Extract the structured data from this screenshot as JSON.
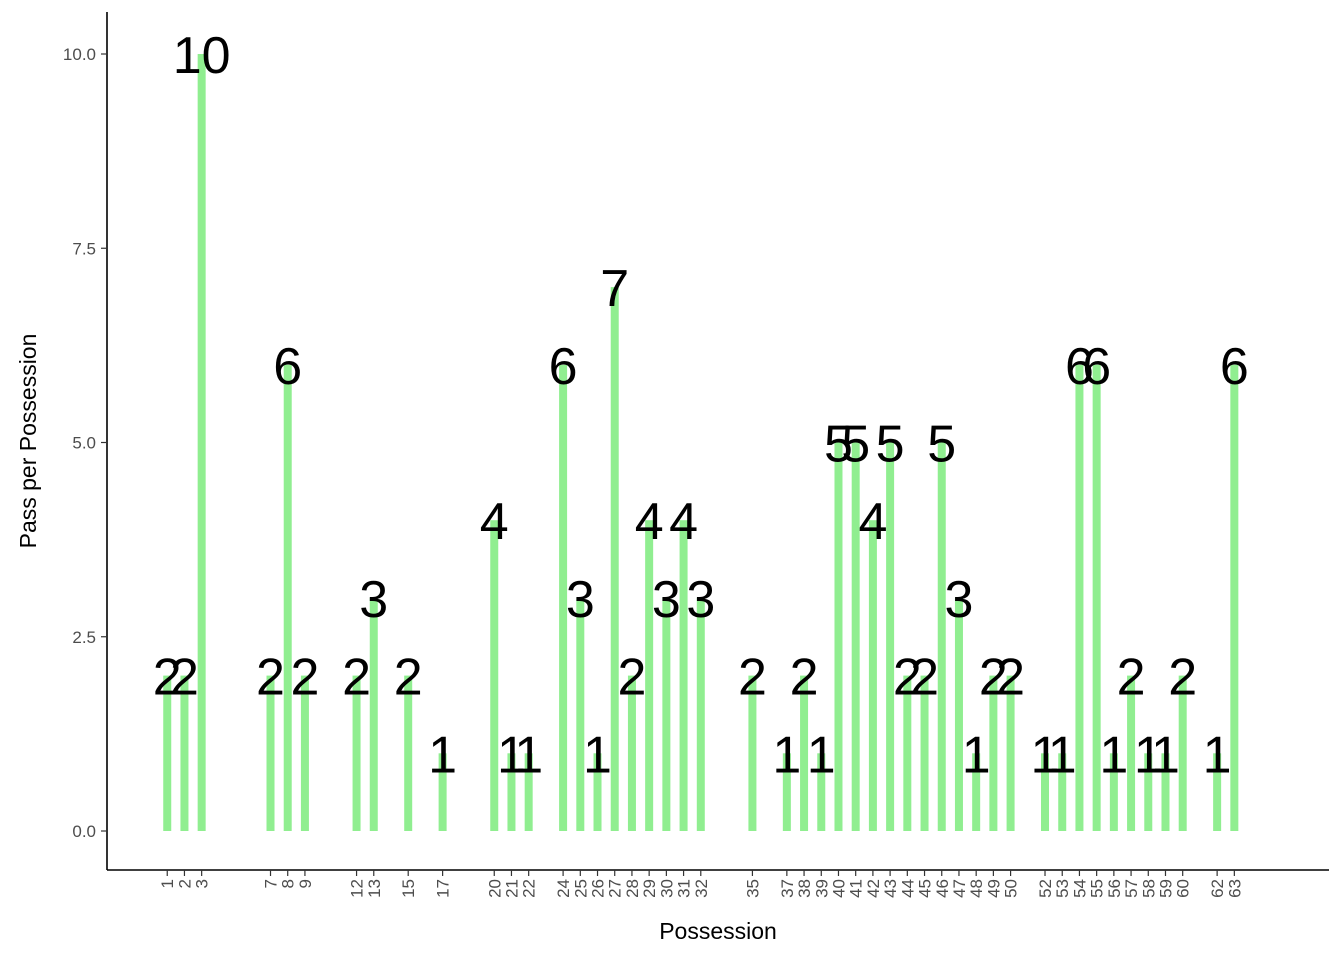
{
  "chart_data": {
    "type": "bar",
    "title": "",
    "xlabel": "Possession",
    "ylabel": "Pass per Possession",
    "ylim": [
      0,
      10
    ],
    "y_ticks": [
      "0.0",
      "2.5",
      "5.0",
      "7.5",
      "10.0"
    ],
    "y_tick_values": [
      0,
      2.5,
      5,
      7.5,
      10
    ],
    "x_range": [
      -2.5,
      68.5
    ],
    "bar_color": "#90EE90",
    "grid": false,
    "legend": "none",
    "categories": [
      "1",
      "2",
      "3",
      "7",
      "8",
      "9",
      "12",
      "13",
      "15",
      "17",
      "20",
      "21",
      "22",
      "24",
      "25",
      "26",
      "27",
      "28",
      "29",
      "30",
      "31",
      "32",
      "35",
      "37",
      "38",
      "39",
      "40",
      "41",
      "42",
      "43",
      "44",
      "45",
      "46",
      "47",
      "48",
      "49",
      "50",
      "52",
      "53",
      "54",
      "55",
      "56",
      "57",
      "58",
      "59",
      "60",
      "62",
      "63"
    ],
    "values": [
      2,
      2,
      10,
      2,
      6,
      2,
      2,
      3,
      2,
      1,
      4,
      1,
      1,
      6,
      3,
      1,
      7,
      2,
      4,
      3,
      4,
      3,
      2,
      1,
      2,
      1,
      5,
      5,
      4,
      5,
      2,
      2,
      5,
      3,
      1,
      2,
      2,
      1,
      1,
      6,
      6,
      1,
      2,
      1,
      1,
      2,
      1,
      6
    ]
  }
}
